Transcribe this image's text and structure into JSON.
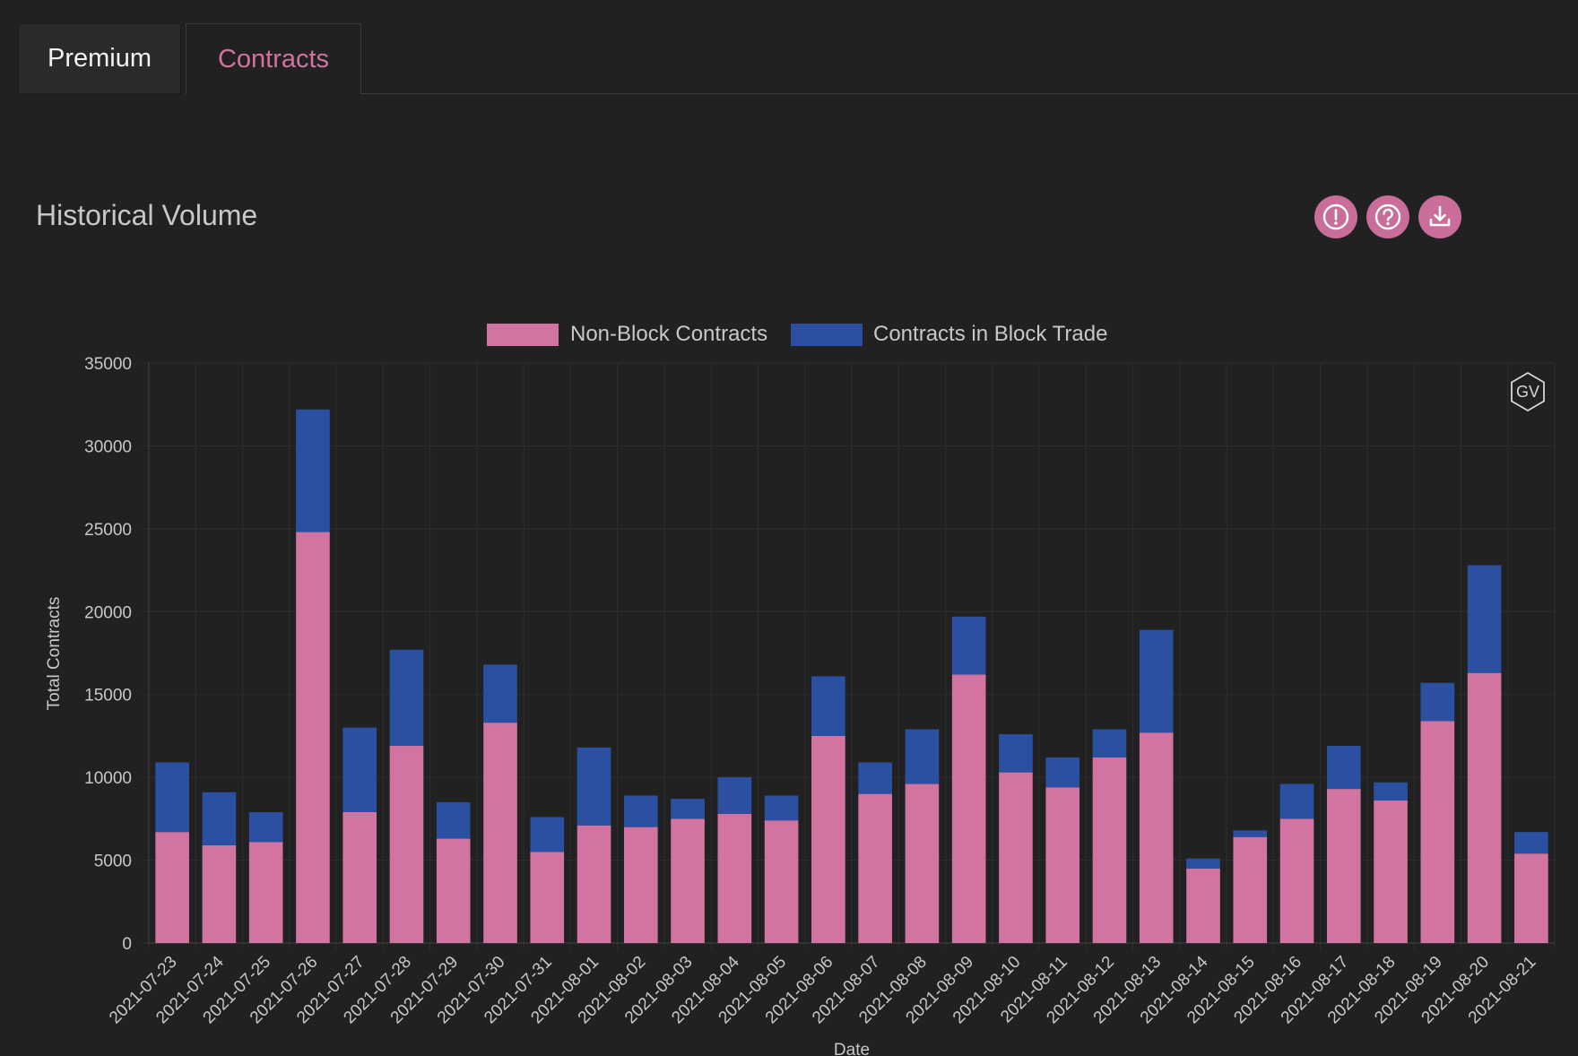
{
  "tabs": [
    {
      "label": "Premium",
      "active": false
    },
    {
      "label": "Contracts",
      "active": true
    }
  ],
  "section": {
    "title": "Historical Volume"
  },
  "toolbar": {
    "icons": [
      "info-exclamation-icon",
      "help-question-icon",
      "download-icon"
    ]
  },
  "watermark": {
    "text": "GV"
  },
  "colors": {
    "background": "#212121",
    "accent": "#c96d9b",
    "non_block": "#d274a2",
    "block": "#2c50a1"
  },
  "chart_data": {
    "type": "bar",
    "stacked": true,
    "xlabel": "Date",
    "ylabel": "Total Contracts",
    "ylim": [
      0,
      35000
    ],
    "yticks": [
      0,
      5000,
      10000,
      15000,
      20000,
      25000,
      30000,
      35000
    ],
    "legend_position": "top-center",
    "grid": true,
    "categories": [
      "2021-07-23",
      "2021-07-24",
      "2021-07-25",
      "2021-07-26",
      "2021-07-27",
      "2021-07-28",
      "2021-07-29",
      "2021-07-30",
      "2021-07-31",
      "2021-08-01",
      "2021-08-02",
      "2021-08-03",
      "2021-08-04",
      "2021-08-05",
      "2021-08-06",
      "2021-08-07",
      "2021-08-08",
      "2021-08-09",
      "2021-08-10",
      "2021-08-11",
      "2021-08-12",
      "2021-08-13",
      "2021-08-14",
      "2021-08-15",
      "2021-08-16",
      "2021-08-17",
      "2021-08-18",
      "2021-08-19",
      "2021-08-20",
      "2021-08-21"
    ],
    "series": [
      {
        "name": "Non-Block Contracts",
        "color": "#d274a2",
        "values": [
          6700,
          5900,
          6100,
          24800,
          7900,
          11900,
          6300,
          13300,
          5500,
          7100,
          7000,
          7500,
          7800,
          7400,
          12500,
          9000,
          9600,
          16200,
          10300,
          9400,
          11200,
          12700,
          4500,
          6400,
          7500,
          9300,
          8600,
          13400,
          16300,
          5400
        ]
      },
      {
        "name": "Contracts in Block Trade",
        "color": "#2c50a1",
        "values": [
          4200,
          3200,
          1800,
          7400,
          5100,
          5800,
          2200,
          3500,
          2100,
          4700,
          1900,
          1200,
          2200,
          1500,
          3600,
          1900,
          3300,
          3500,
          2300,
          1800,
          1700,
          6200,
          600,
          400,
          2100,
          2600,
          1100,
          2300,
          6500,
          1300
        ]
      }
    ]
  }
}
